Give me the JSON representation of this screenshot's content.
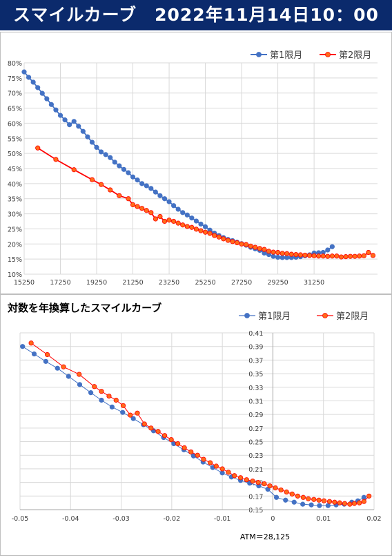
{
  "header": {
    "title": "スマイルカーブ　2022年11月14日10：00"
  },
  "colors": {
    "series1": "#4472c4",
    "series2": "#ff0000",
    "series2_fill": "#ff6b1a",
    "banner": "#0b2a6c"
  },
  "chart_data": [
    {
      "type": "line",
      "title": "",
      "legend_position": "top-right",
      "grid": true,
      "xlim": [
        15250,
        34750
      ],
      "ylim": [
        10,
        80
      ],
      "xticks": [
        "15250",
        "17250",
        "19250",
        "21250",
        "23250",
        "25250",
        "27250",
        "29250",
        "31250"
      ],
      "yticks": [
        "10%",
        "15%",
        "20%",
        "25%",
        "30%",
        "35%",
        "40%",
        "45%",
        "50%",
        "55%",
        "60%",
        "65%",
        "70%",
        "75%",
        "80%"
      ],
      "series": [
        {
          "name": "第1限月",
          "x": [
            15250,
            15500,
            15750,
            16000,
            16250,
            16500,
            16750,
            17000,
            17250,
            17500,
            17750,
            18000,
            18250,
            18500,
            18750,
            19000,
            19250,
            19500,
            19750,
            20000,
            20250,
            20500,
            20750,
            21000,
            21250,
            21500,
            21750,
            22000,
            22250,
            22500,
            22750,
            23000,
            23250,
            23500,
            23750,
            24000,
            24250,
            24500,
            24750,
            25000,
            25250,
            25500,
            25750,
            26000,
            26250,
            26500,
            26750,
            27000,
            27250,
            27500,
            27750,
            28000,
            28250,
            28500,
            28750,
            29000,
            29250,
            29500,
            29750,
            30000,
            30250,
            30500,
            30750,
            31000,
            31250,
            31500,
            31750,
            32000,
            32250
          ],
          "y": [
            77,
            75.2,
            73.6,
            71.8,
            69.9,
            68.1,
            66.2,
            64.4,
            62.6,
            61.1,
            59.5,
            60.6,
            59.0,
            57.3,
            55.5,
            53.7,
            52.0,
            50.5,
            49.6,
            48.6,
            47.1,
            45.9,
            44.7,
            43.6,
            42.2,
            41.2,
            40.0,
            39.3,
            38.4,
            37.2,
            36.0,
            35.0,
            34.0,
            32.7,
            31.5,
            30.4,
            29.6,
            28.6,
            27.6,
            26.6,
            25.7,
            24.6,
            23.6,
            22.8,
            22.1,
            21.5,
            21.1,
            20.6,
            20.1,
            19.6,
            18.9,
            18.4,
            17.9,
            17.0,
            16.5,
            15.9,
            15.6,
            15.5,
            15.5,
            15.5,
            15.6,
            15.8,
            16.1,
            16.4,
            17.0,
            17.1,
            17.2,
            18.0,
            19.1
          ]
        },
        {
          "name": "第2限月",
          "x": [
            16000,
            17000,
            18000,
            19000,
            19500,
            20000,
            20500,
            21000,
            21250,
            21500,
            21750,
            22000,
            22250,
            22500,
            22750,
            23000,
            23250,
            23500,
            23750,
            24000,
            24250,
            24500,
            24750,
            25000,
            25250,
            25500,
            25750,
            26000,
            26250,
            26500,
            26750,
            27000,
            27250,
            27500,
            27750,
            28000,
            28250,
            28500,
            28750,
            29000,
            29250,
            29500,
            29750,
            30000,
            30250,
            30500,
            30750,
            31000,
            31250,
            31500,
            31750,
            32000,
            32250,
            32500,
            32750,
            33000,
            33250,
            33500,
            33750,
            34000,
            34250,
            34500
          ],
          "y": [
            51.8,
            48.0,
            44.6,
            41.3,
            39.7,
            37.9,
            36.0,
            35.0,
            33.0,
            32.4,
            31.8,
            31.1,
            30.4,
            28.3,
            29.1,
            27.5,
            27.9,
            27.5,
            26.9,
            26.3,
            25.8,
            25.5,
            24.9,
            24.4,
            23.9,
            23.5,
            22.8,
            22.3,
            21.7,
            21.2,
            20.8,
            20.4,
            20.0,
            19.8,
            19.3,
            18.9,
            18.5,
            18.2,
            17.6,
            17.3,
            17.2,
            16.9,
            16.8,
            16.6,
            16.5,
            16.4,
            16.3,
            16.2,
            16.1,
            16.0,
            16.0,
            15.9,
            16.0,
            16.0,
            15.7,
            15.8,
            15.9,
            15.9,
            16.0,
            16.1,
            17.2,
            16.2
          ]
        }
      ]
    },
    {
      "type": "scatter",
      "title": "対数を年換算したスマイルカーブ",
      "subtitle": "ATM＝28,125",
      "legend_position": "top-right",
      "grid": true,
      "xlim": [
        -0.05,
        0.02
      ],
      "ylim": [
        0.15,
        0.41
      ],
      "xticks": [
        "-0.05",
        "-0.04",
        "-0.03",
        "-0.02",
        "-0.01",
        "0",
        "0.01",
        "0.02"
      ],
      "yticks": [
        "0.15",
        "0.17",
        "0.19",
        "0.21",
        "0.23",
        "0.25",
        "0.27",
        "0.29",
        "0.31",
        "0.33",
        "0.35",
        "0.37",
        "0.39",
        "0.41"
      ],
      "series": [
        {
          "name": "第1限月",
          "x": [
            -0.0495,
            -0.0472,
            -0.0449,
            -0.0426,
            -0.0404,
            -0.0382,
            -0.036,
            -0.0339,
            -0.0318,
            -0.0297,
            -0.0276,
            -0.0256,
            -0.0236,
            -0.0216,
            -0.0196,
            -0.0176,
            -0.0157,
            -0.0138,
            -0.0119,
            -0.01,
            -0.0082,
            -0.0064,
            -0.0046,
            -0.0028,
            -0.001,
            0.0007,
            0.0025,
            0.0042,
            0.0059,
            0.0076,
            0.0092,
            0.0109,
            0.0125,
            0.0141,
            0.0156,
            0.0168,
            0.018
          ],
          "y": [
            0.39,
            0.379,
            0.368,
            0.358,
            0.346,
            0.334,
            0.322,
            0.311,
            0.301,
            0.293,
            0.284,
            0.275,
            0.266,
            0.256,
            0.247,
            0.238,
            0.229,
            0.22,
            0.212,
            0.204,
            0.198,
            0.193,
            0.189,
            0.185,
            0.18,
            0.168,
            0.164,
            0.161,
            0.158,
            0.157,
            0.156,
            0.156,
            0.157,
            0.158,
            0.161,
            0.163,
            0.168
          ]
        },
        {
          "name": "第2限月",
          "x": [
            -0.0478,
            -0.0446,
            -0.0414,
            -0.0383,
            -0.0353,
            -0.0339,
            -0.0324,
            -0.031,
            -0.0296,
            -0.0282,
            -0.0268,
            -0.0254,
            -0.0241,
            -0.0227,
            -0.0214,
            -0.0201,
            -0.0188,
            -0.0175,
            -0.0162,
            -0.0149,
            -0.0137,
            -0.0124,
            -0.0112,
            -0.01,
            -0.0088,
            -0.0076,
            -0.0064,
            -0.0052,
            -0.004,
            -0.0029,
            -0.0017,
            -0.0006,
            0.0005,
            0.0016,
            0.0027,
            0.0038,
            0.0049,
            0.006,
            0.007,
            0.0081,
            0.0091,
            0.0101,
            0.0112,
            0.0122,
            0.0132,
            0.0142,
            0.0152,
            0.0161,
            0.0171,
            0.018,
            0.019
          ],
          "y": [
            0.395,
            0.378,
            0.36,
            0.349,
            0.331,
            0.324,
            0.317,
            0.311,
            0.303,
            0.289,
            0.292,
            0.276,
            0.27,
            0.265,
            0.259,
            0.253,
            0.247,
            0.241,
            0.235,
            0.23,
            0.224,
            0.219,
            0.214,
            0.21,
            0.205,
            0.2,
            0.197,
            0.194,
            0.192,
            0.19,
            0.188,
            0.185,
            0.182,
            0.179,
            0.176,
            0.173,
            0.17,
            0.168,
            0.166,
            0.165,
            0.164,
            0.163,
            0.162,
            0.161,
            0.16,
            0.159,
            0.158,
            0.159,
            0.16,
            0.162,
            0.17
          ]
        }
      ]
    }
  ]
}
